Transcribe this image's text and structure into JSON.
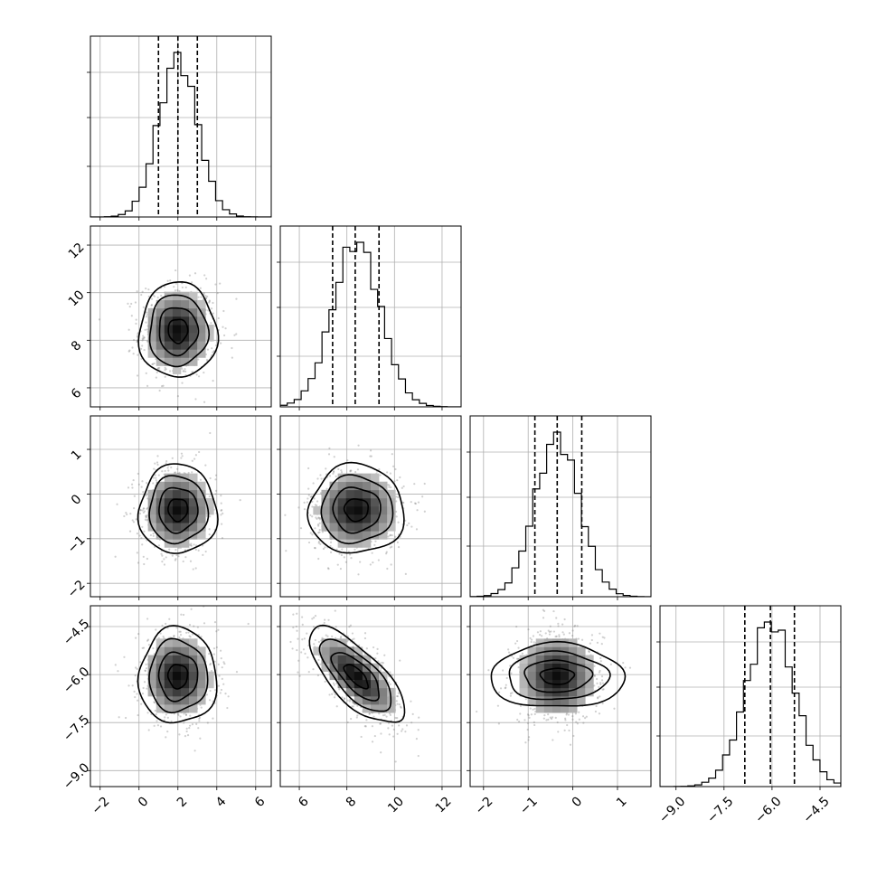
{
  "chart_data": {
    "type": "corner",
    "grid": true,
    "parameters": [
      {
        "mean": 2.0,
        "std": 1.0,
        "quantiles": [
          1.0,
          2.0,
          3.0
        ],
        "range": [
          -2.5,
          6.8
        ],
        "ticks": [
          -2,
          0,
          2,
          4,
          6
        ],
        "tick_labels": [
          "−2",
          "0",
          "2",
          "4",
          "6"
        ]
      },
      {
        "mean": 8.4,
        "std": 1.0,
        "quantiles": [
          7.4,
          8.35,
          9.35
        ],
        "range": [
          5.2,
          12.8
        ],
        "ticks": [
          6,
          8,
          10,
          12
        ],
        "tick_labels": [
          "6",
          "8",
          "10",
          "12"
        ]
      },
      {
        "mean": -0.35,
        "std": 0.5,
        "quantiles": [
          -0.85,
          -0.35,
          0.2
        ],
        "range": [
          -2.3,
          1.75
        ],
        "ticks": [
          -2,
          -1,
          0,
          1
        ],
        "tick_labels": [
          "−2",
          "−1",
          "0",
          "1"
        ]
      },
      {
        "mean": -6.05,
        "std": 0.75,
        "quantiles": [
          -6.85,
          -6.05,
          -5.3
        ],
        "range": [
          -9.5,
          -3.85
        ],
        "ticks": [
          -9.0,
          -7.5,
          -6.0,
          -4.5
        ],
        "tick_labels": [
          "−9.0",
          "−7.5",
          "−6.0",
          "−4.5"
        ]
      }
    ],
    "correlations": [
      {
        "x": 0,
        "y": 1,
        "r": 0.0
      },
      {
        "x": 0,
        "y": 2,
        "r": 0.0
      },
      {
        "x": 0,
        "y": 3,
        "r": 0.0
      },
      {
        "x": 1,
        "y": 2,
        "r": 0.0
      },
      {
        "x": 1,
        "y": 3,
        "r": -0.72
      },
      {
        "x": 2,
        "y": 3,
        "r": 0.0
      }
    ],
    "contour_levels_sigma": [
      0.5,
      1.0,
      1.5,
      2.0
    ],
    "histogram_bins": 26
  }
}
